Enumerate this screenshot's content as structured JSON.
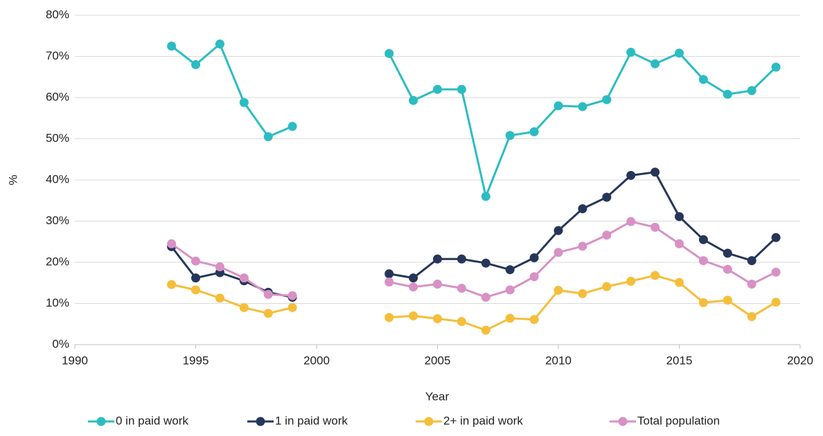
{
  "chart_data": {
    "type": "line",
    "x": [
      1994,
      1995,
      1996,
      1997,
      1998,
      1999,
      2000,
      2001,
      2002,
      2003,
      2004,
      2005,
      2006,
      2007,
      2008,
      2009,
      2010,
      2011,
      2012,
      2013,
      2014,
      2015,
      2016,
      2017,
      2018,
      2019
    ],
    "series": [
      {
        "name": "0 in paid work",
        "color": "#2bbcc2",
        "values": [
          72.5,
          68,
          73,
          58.8,
          50.5,
          53,
          null,
          null,
          null,
          70.7,
          59.3,
          62,
          62,
          36,
          50.8,
          51.7,
          58,
          57.8,
          59.5,
          71,
          68.2,
          70.8,
          64.4,
          60.8,
          61.7,
          67.4
        ]
      },
      {
        "name": "1 in paid work",
        "color": "#253659",
        "values": [
          23.8,
          16.2,
          17.5,
          15.5,
          12.7,
          11.5,
          null,
          null,
          null,
          17.2,
          16.2,
          20.8,
          20.8,
          19.8,
          18.2,
          21.1,
          27.7,
          33,
          35.8,
          41.1,
          41.9,
          31.1,
          25.5,
          22.2,
          20.4,
          26
        ]
      },
      {
        "name": "2+ in paid work",
        "color": "#f5be3a",
        "values": [
          14.6,
          13.3,
          11.3,
          9,
          7.6,
          9,
          null,
          null,
          null,
          6.6,
          7,
          6.3,
          5.6,
          3.5,
          6.4,
          6.1,
          13.2,
          12.4,
          14.1,
          15.4,
          16.8,
          15.1,
          10.2,
          10.8,
          6.8,
          10.3
        ]
      },
      {
        "name": "Total population",
        "color": "#d891c4",
        "values": [
          24.5,
          20.3,
          18.9,
          16.2,
          12.2,
          11.9,
          null,
          null,
          null,
          15.2,
          14,
          14.7,
          13.7,
          11.5,
          13.3,
          16.5,
          22.4,
          23.9,
          26.6,
          29.9,
          28.5,
          24.5,
          20.4,
          18.3,
          14.7,
          17.6
        ]
      }
    ],
    "xlabel": "Year",
    "ylabel": "%",
    "xlim": [
      1990,
      2020
    ],
    "xticks": [
      1990,
      1995,
      2000,
      2005,
      2010,
      2015,
      2020
    ],
    "ylim": [
      0,
      80
    ],
    "yticks": [
      {
        "value": 0,
        "label": "0%"
      },
      {
        "value": 10,
        "label": "10%"
      },
      {
        "value": 20,
        "label": "20%"
      },
      {
        "value": 30,
        "label": "30%"
      },
      {
        "value": 40,
        "label": "40%"
      },
      {
        "value": 50,
        "label": "50%"
      },
      {
        "value": 60,
        "label": "60%"
      },
      {
        "value": 70,
        "label": "70%"
      },
      {
        "value": 80,
        "label": "80%"
      }
    ],
    "grid": true,
    "legend": "bottom"
  }
}
